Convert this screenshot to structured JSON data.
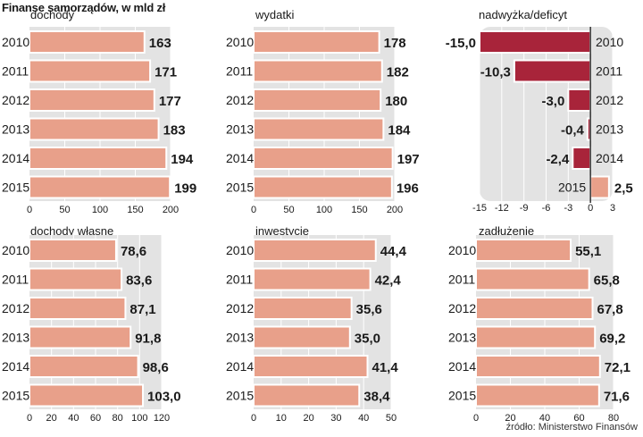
{
  "title": "Finanse samorządów, w mld zł",
  "source": "źródło: Ministerstwo Finansów",
  "colors": {
    "bar": "#e8a08a",
    "bar_stroke": "#ffffff",
    "negative_bar": "#a8243a",
    "panel_bg": "#e3e3e3",
    "grid": "#ffffff",
    "axis": "#333333",
    "text": "#1a1a1a"
  },
  "chart_data": [
    {
      "type": "bar",
      "orientation": "horizontal",
      "title": "dochody",
      "categories": [
        "2010",
        "2011",
        "2012",
        "2013",
        "2014",
        "2015"
      ],
      "values": [
        163,
        171,
        177,
        183,
        194,
        199
      ],
      "value_labels": [
        "163",
        "171",
        "177",
        "183",
        "194",
        "199"
      ],
      "xlim": [
        0,
        200
      ],
      "ticks": [
        0,
        50,
        100,
        150,
        200
      ],
      "tick_labels": [
        "0",
        "50",
        "100",
        "150",
        "200"
      ]
    },
    {
      "type": "bar",
      "orientation": "horizontal",
      "title": "wydatki",
      "categories": [
        "2010",
        "2011",
        "2012",
        "2013",
        "2014",
        "2015"
      ],
      "values": [
        178,
        182,
        180,
        184,
        197,
        196
      ],
      "value_labels": [
        "178",
        "182",
        "180",
        "184",
        "197",
        "196"
      ],
      "xlim": [
        0,
        200
      ],
      "ticks": [
        0,
        50,
        100,
        150,
        200
      ],
      "tick_labels": [
        "0",
        "50",
        "100",
        "150",
        "200"
      ]
    },
    {
      "type": "bar",
      "orientation": "horizontal",
      "title": "nadwyżka/deficyt",
      "categories": [
        "2010",
        "2011",
        "2012",
        "2013",
        "2014",
        "2015"
      ],
      "values": [
        -15.0,
        -10.3,
        -3.0,
        -0.4,
        -2.4,
        2.5
      ],
      "value_labels": [
        "-15,0",
        "-10,3",
        "-3,0",
        "-0,4",
        "-2,4",
        "2,5"
      ],
      "xlim": [
        -15,
        3
      ],
      "ticks": [
        -15,
        -12,
        -9,
        -6,
        -3,
        0,
        3
      ],
      "tick_labels": [
        "-15",
        "-12",
        "-9",
        "-6",
        "-3",
        "0",
        "3"
      ]
    },
    {
      "type": "bar",
      "orientation": "horizontal",
      "title": "dochody własne",
      "categories": [
        "2010",
        "2011",
        "2012",
        "2013",
        "2014",
        "2015"
      ],
      "values": [
        78.6,
        83.6,
        87.1,
        91.8,
        98.6,
        103.0
      ],
      "value_labels": [
        "78,6",
        "83,6",
        "87,1",
        "91,8",
        "98,6",
        "103,0"
      ],
      "xlim": [
        0,
        120
      ],
      "ticks": [
        0,
        20,
        40,
        60,
        80,
        100,
        120
      ],
      "tick_labels": [
        "0",
        "20",
        "40",
        "60",
        "80",
        "100",
        "120"
      ]
    },
    {
      "type": "bar",
      "orientation": "horizontal",
      "title": "inwestycje",
      "categories": [
        "2010",
        "2011",
        "2012",
        "2013",
        "2014",
        "2015"
      ],
      "values": [
        44.4,
        42.4,
        35.6,
        35.0,
        41.4,
        38.4
      ],
      "value_labels": [
        "44,4",
        "42,4",
        "35,6",
        "35,0",
        "41,4",
        "38,4"
      ],
      "xlim": [
        0,
        50
      ],
      "ticks": [
        0,
        10,
        20,
        30,
        40,
        50
      ],
      "tick_labels": [
        "0",
        "10",
        "20",
        "30",
        "40",
        "50"
      ]
    },
    {
      "type": "bar",
      "orientation": "horizontal",
      "title": "zadłużenie",
      "categories": [
        "2010",
        "2011",
        "2012",
        "2013",
        "2014",
        "2015"
      ],
      "values": [
        55.1,
        65.8,
        67.8,
        69.2,
        72.1,
        71.6
      ],
      "value_labels": [
        "55,1",
        "65,8",
        "67,8",
        "69,2",
        "72,1",
        "71,6"
      ],
      "xlim": [
        0,
        80
      ],
      "ticks": [
        0,
        20,
        40,
        60,
        80
      ],
      "tick_labels": [
        "0",
        "20",
        "40",
        "60",
        "80"
      ]
    }
  ]
}
